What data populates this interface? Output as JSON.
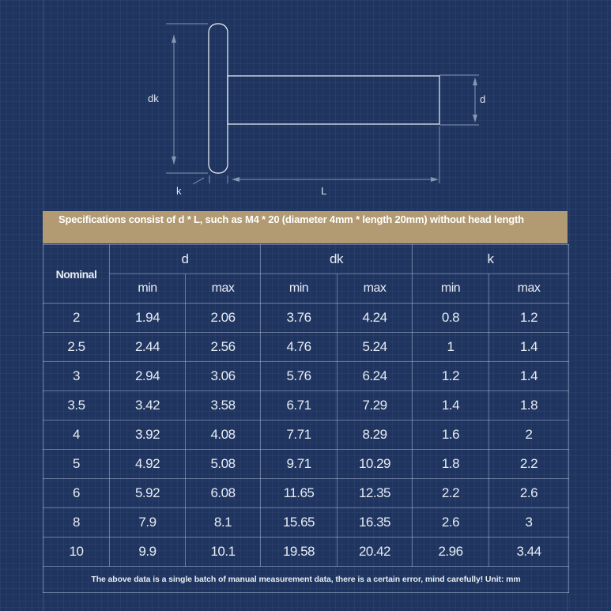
{
  "diagram": {
    "labels": {
      "dk": "dk",
      "d": "d",
      "k": "k",
      "L": "L"
    }
  },
  "banner": "Specifications consist of d * L, such as M4 * 20 (diameter 4mm * length 20mm) without head length",
  "table": {
    "nominal_header": "Nominal",
    "groups": [
      "d",
      "dk",
      "k"
    ],
    "sub_headers": [
      "min",
      "max",
      "min",
      "max",
      "min",
      "max"
    ],
    "rows": [
      [
        "2",
        "1.94",
        "2.06",
        "3.76",
        "4.24",
        "0.8",
        "1.2"
      ],
      [
        "2.5",
        "2.44",
        "2.56",
        "4.76",
        "5.24",
        "1",
        "1.4"
      ],
      [
        "3",
        "2.94",
        "3.06",
        "5.76",
        "6.24",
        "1.2",
        "1.4"
      ],
      [
        "3.5",
        "3.42",
        "3.58",
        "6.71",
        "7.29",
        "1.4",
        "1.8"
      ],
      [
        "4",
        "3.92",
        "4.08",
        "7.71",
        "8.29",
        "1.6",
        "2"
      ],
      [
        "5",
        "4.92",
        "5.08",
        "9.71",
        "10.29",
        "1.8",
        "2.2"
      ],
      [
        "6",
        "5.92",
        "6.08",
        "11.65",
        "12.35",
        "2.2",
        "2.6"
      ],
      [
        "8",
        "7.9",
        "8.1",
        "15.65",
        "16.35",
        "2.6",
        "3"
      ],
      [
        "10",
        "9.9",
        "10.1",
        "19.58",
        "20.42",
        "2.96",
        "3.44"
      ]
    ],
    "footnote": "The above data is a single batch of manual measurement data, there is a certain error, mind carefully! Unit: mm"
  },
  "colors": {
    "background": "#1f3560",
    "banner": "#b29a72"
  }
}
